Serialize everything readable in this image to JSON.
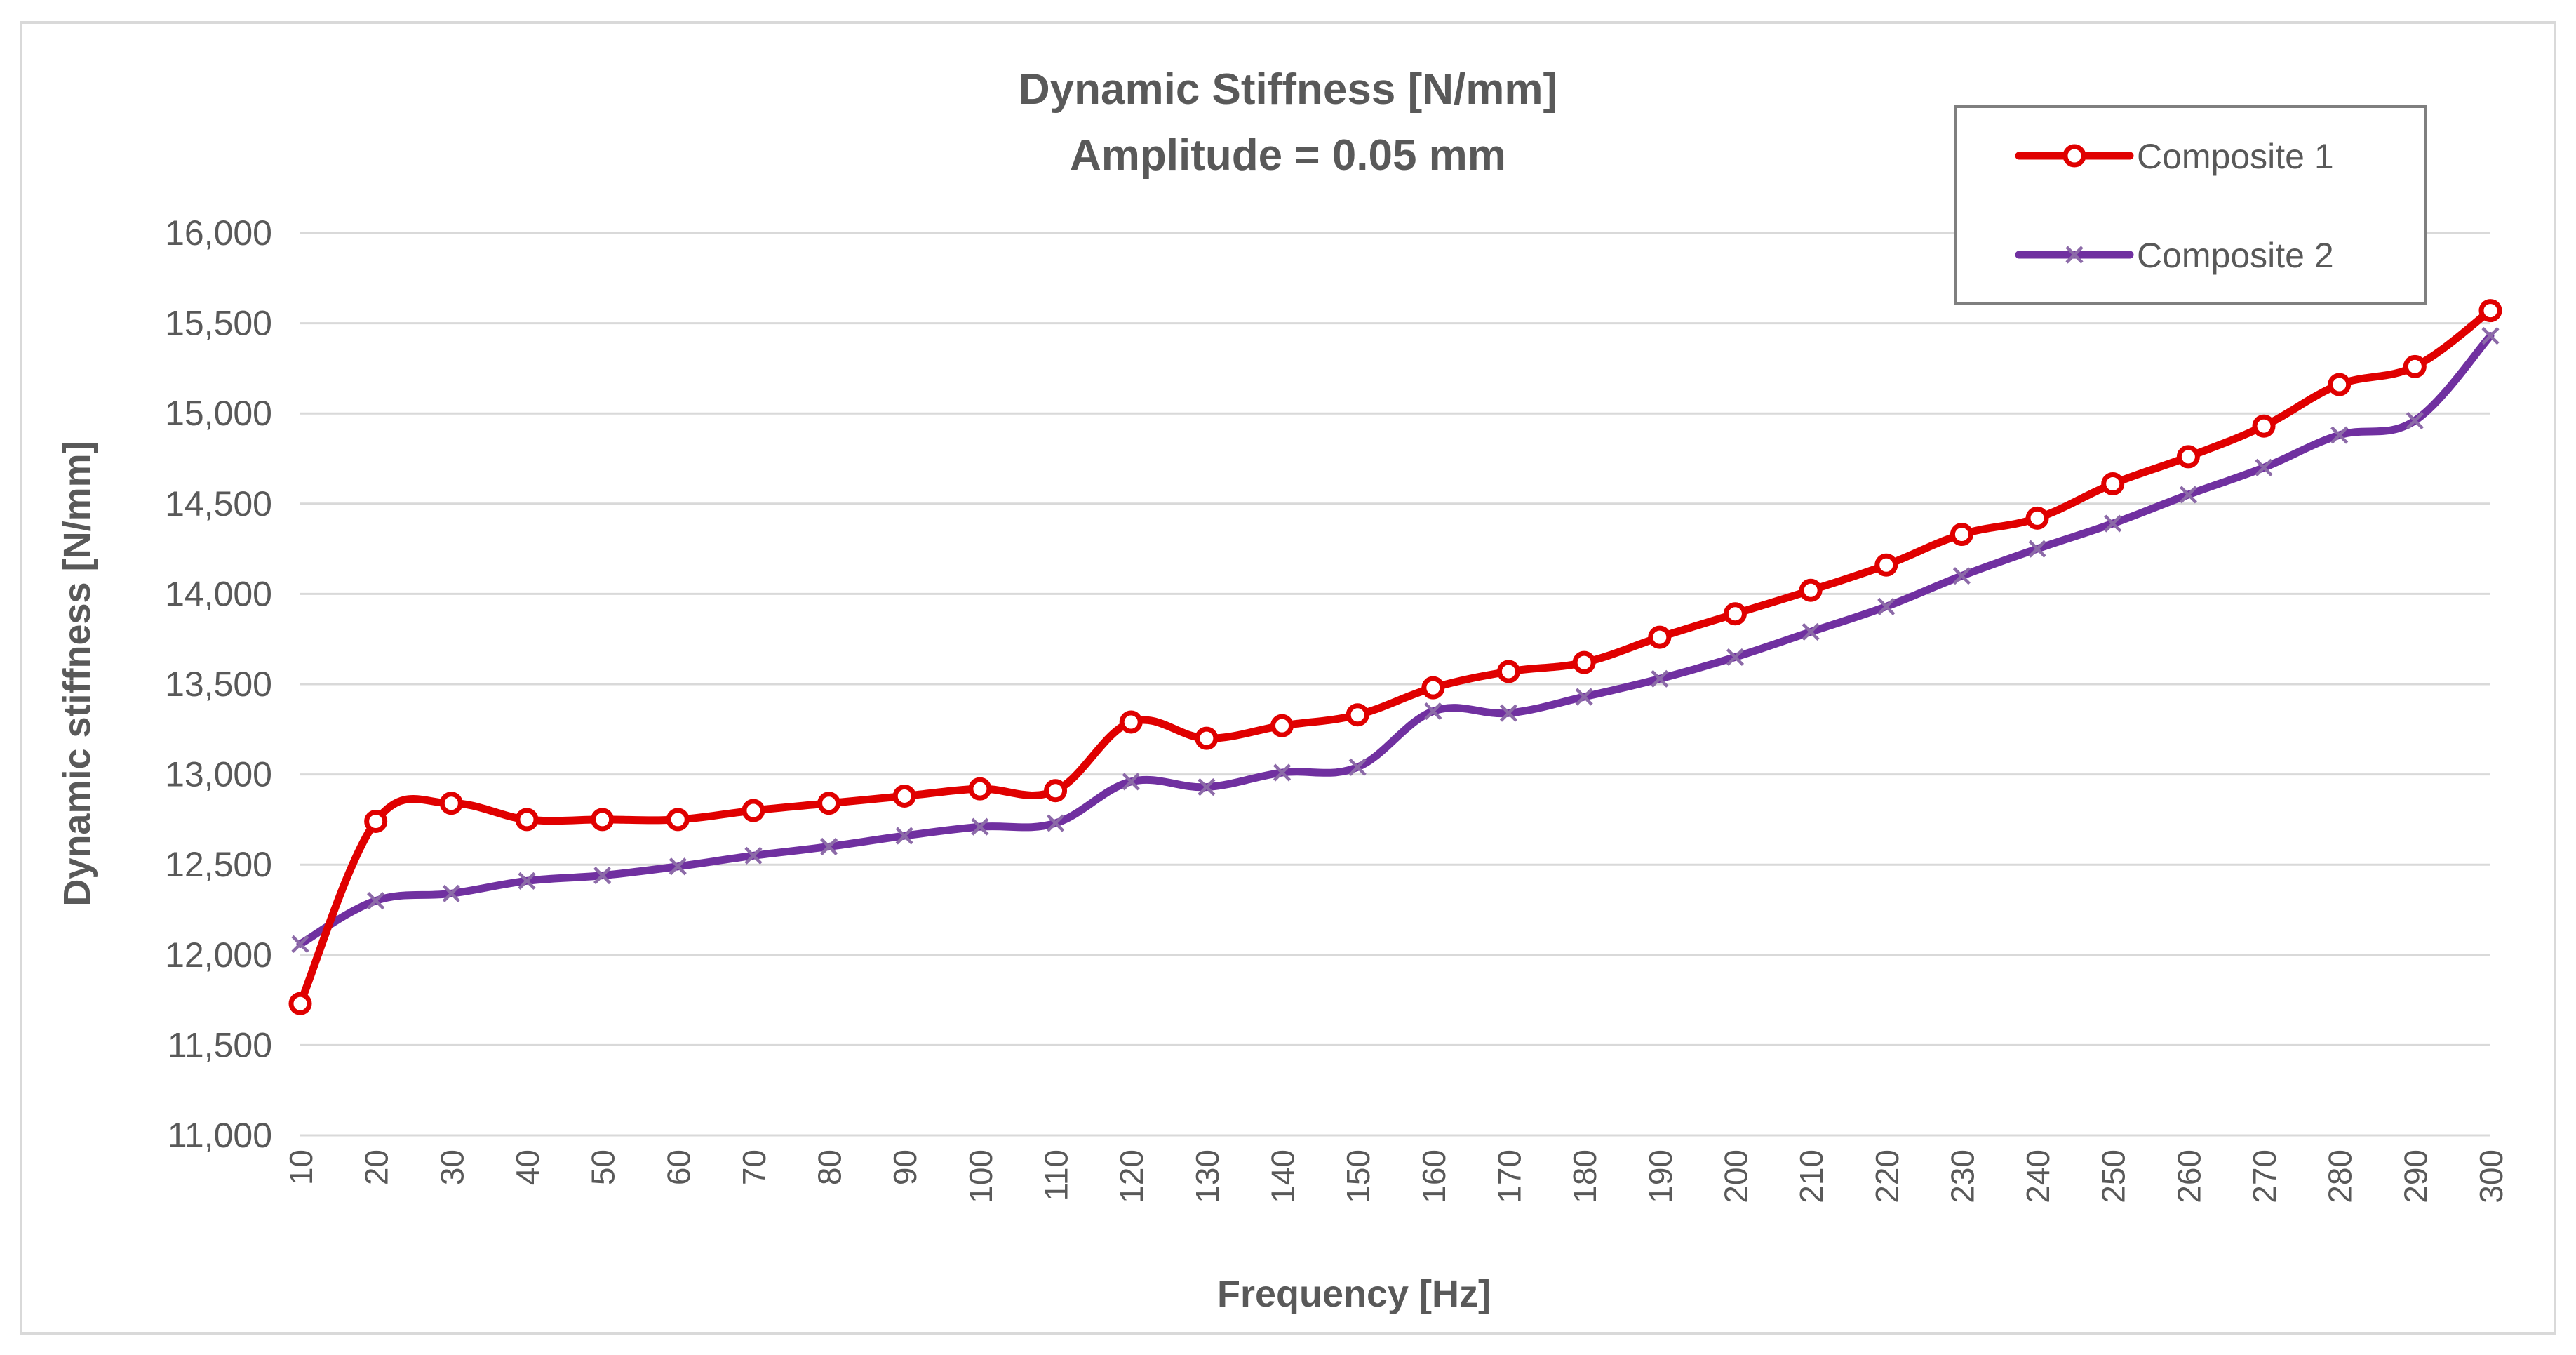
{
  "chart_data": {
    "type": "line",
    "title_line1": "Dynamic Stiffness [N/mm]",
    "title_line2": "Amplitude = 0.05 mm",
    "xlabel": "Frequency [Hz]",
    "ylabel": "Dynamic stiffness [N/mm]",
    "ylim": [
      11000,
      16000
    ],
    "y_ticks": [
      11000,
      11500,
      12000,
      12500,
      13000,
      13500,
      14000,
      14500,
      15000,
      15500,
      16000
    ],
    "y_tick_labels": [
      "11,000",
      "11,500",
      "12,000",
      "12,500",
      "13,000",
      "13,500",
      "14,000",
      "14,500",
      "15,000",
      "15,500",
      "16,000"
    ],
    "x": [
      10,
      20,
      30,
      40,
      50,
      60,
      70,
      80,
      90,
      100,
      110,
      120,
      130,
      140,
      150,
      160,
      170,
      180,
      190,
      200,
      210,
      220,
      230,
      240,
      250,
      260,
      270,
      280,
      290,
      300
    ],
    "x_tick_labels": [
      "10",
      "20",
      "30",
      "40",
      "50",
      "60",
      "70",
      "80",
      "90",
      "100",
      "110",
      "120",
      "130",
      "140",
      "150",
      "160",
      "170",
      "180",
      "190",
      "200",
      "210",
      "220",
      "230",
      "240",
      "250",
      "260",
      "270",
      "280",
      "290",
      "300"
    ],
    "grid": true,
    "legend_position": "top-right",
    "series": [
      {
        "name": "Composite 1",
        "color": "#e00000",
        "marker": "circle",
        "values": [
          11730,
          12740,
          12840,
          12750,
          12750,
          12750,
          12800,
          12840,
          12880,
          12920,
          12910,
          13290,
          13200,
          13270,
          13330,
          13480,
          13570,
          13620,
          13760,
          13890,
          14020,
          14160,
          14330,
          14420,
          14610,
          14760,
          14930,
          15160,
          15260,
          15570
        ]
      },
      {
        "name": "Composite 2",
        "color": "#7030a0",
        "marker": "x",
        "values": [
          12060,
          12300,
          12340,
          12410,
          12440,
          12490,
          12550,
          12600,
          12660,
          12710,
          12730,
          12960,
          12930,
          13010,
          13040,
          13350,
          13340,
          13430,
          13530,
          13650,
          13790,
          13930,
          14100,
          14250,
          14390,
          14550,
          14700,
          14880,
          14960,
          15430
        ]
      }
    ]
  }
}
